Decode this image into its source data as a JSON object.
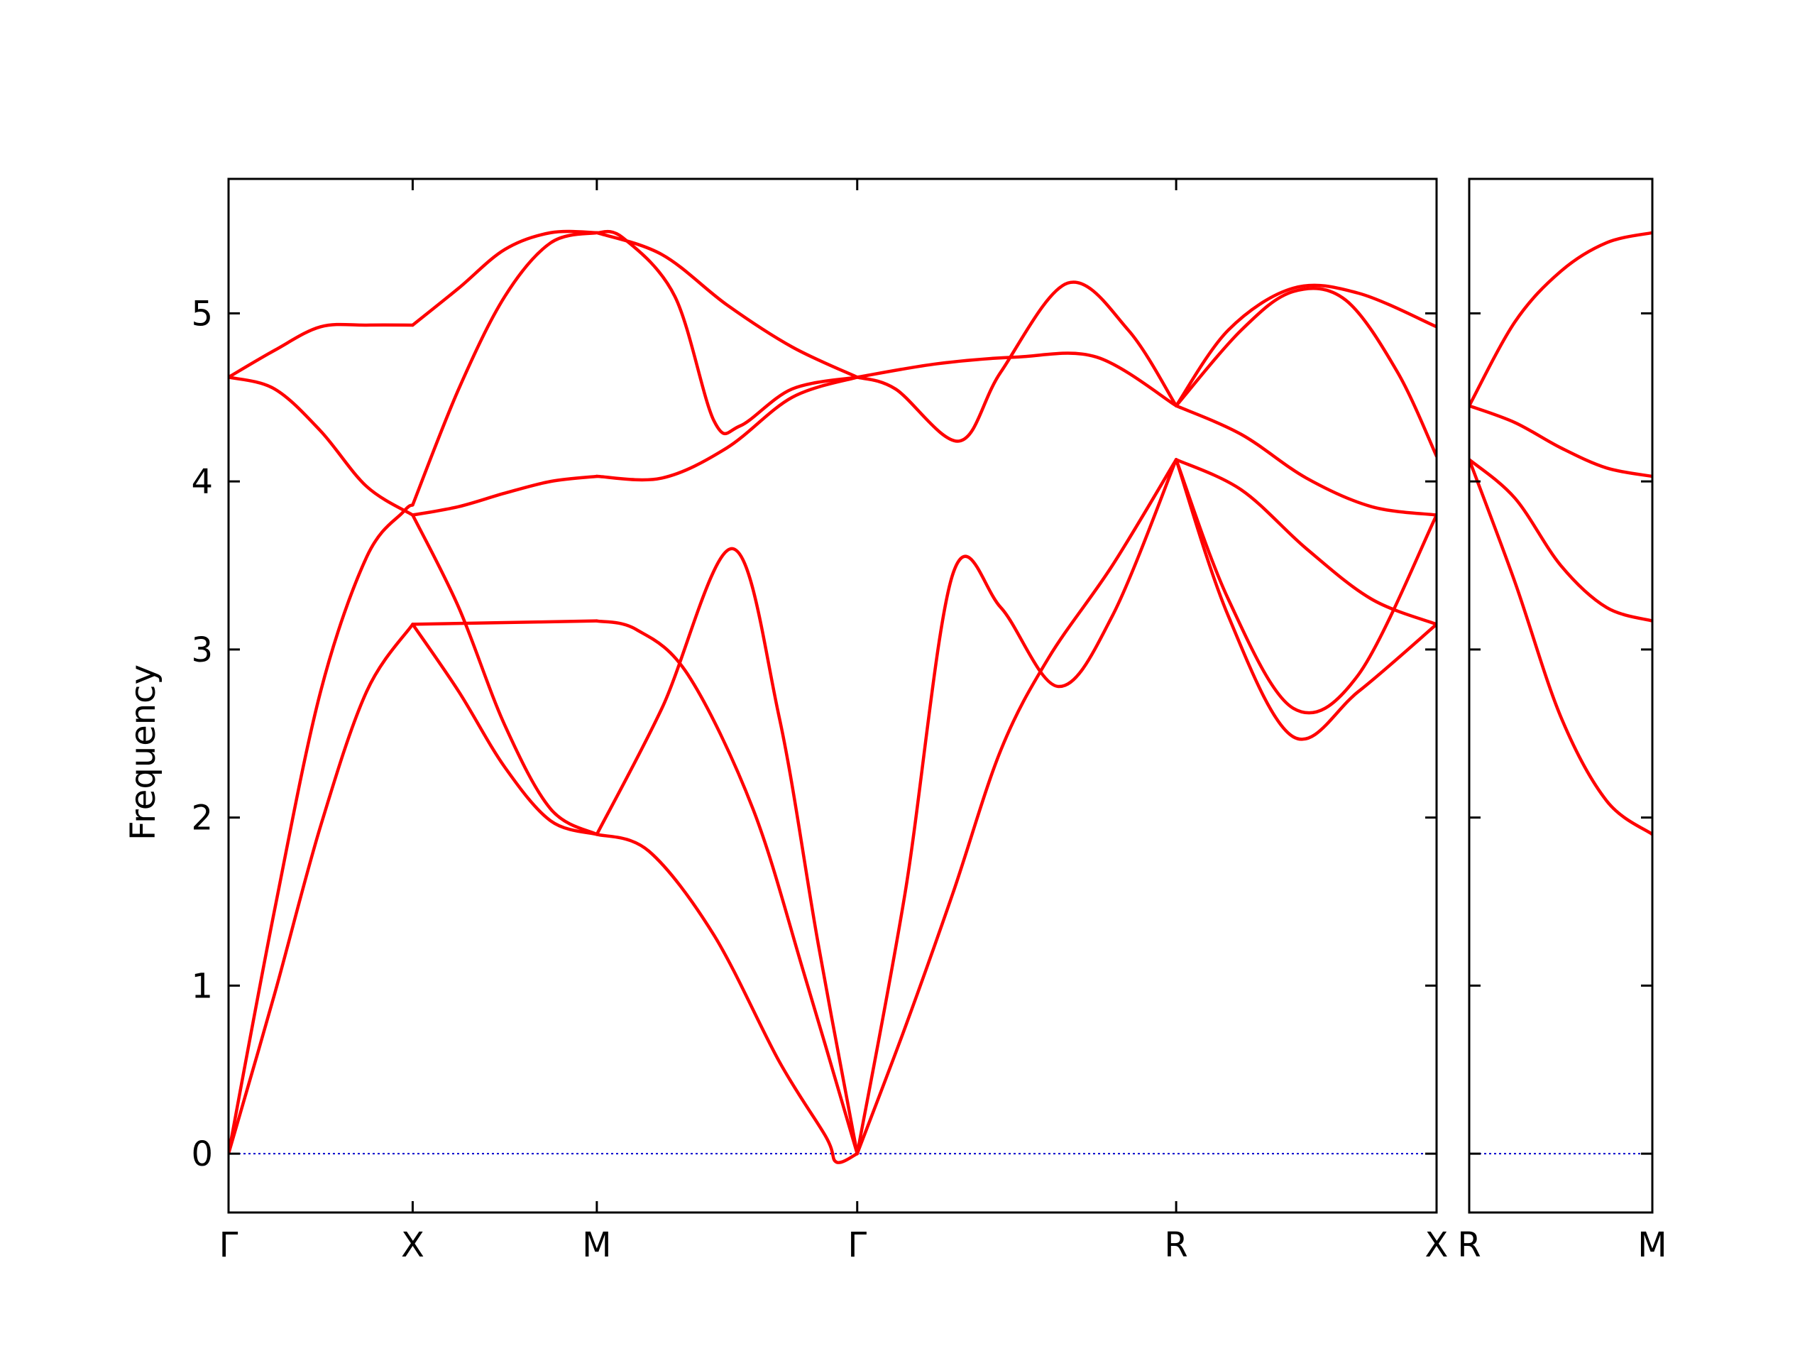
{
  "chart_data": {
    "type": "line",
    "ylabel": "Frequency",
    "ylim": [
      -0.35,
      5.8
    ],
    "yticks": [
      0,
      1,
      2,
      3,
      4,
      5
    ],
    "line_color": "#ff0000",
    "zero_line_color": "#0000cc",
    "segment_lengths": [
      1.0,
      1.0,
      1.4142,
      1.7321,
      1.4142,
      1.0
    ],
    "panels": [
      {
        "name": "main",
        "x_labels": [
          "Γ",
          "X",
          "M",
          "Γ",
          "R",
          "X"
        ],
        "first_segment": 0,
        "last_segment": 4
      },
      {
        "name": "right",
        "x_labels": [
          "R",
          "M"
        ],
        "first_segment": 5,
        "last_segment": 5
      }
    ],
    "series": [
      {
        "segment": 0,
        "x": [
          0,
          0.25,
          0.5,
          0.75,
          1.0
        ],
        "y": [
          4.62,
          4.78,
          4.92,
          4.93,
          4.93
        ]
      },
      {
        "segment": 0,
        "x": [
          0,
          0.25,
          0.5,
          0.75,
          1.0
        ],
        "y": [
          4.62,
          4.55,
          4.3,
          3.97,
          3.8
        ]
      },
      {
        "segment": 0,
        "x": [
          0,
          0.25,
          0.5,
          0.75,
          0.95,
          1.0
        ],
        "y": [
          0.0,
          1.45,
          2.75,
          3.55,
          3.82,
          3.86
        ]
      },
      {
        "segment": 0,
        "x": [
          0,
          0.25,
          0.5,
          0.75,
          1.0
        ],
        "y": [
          0.0,
          0.95,
          1.95,
          2.75,
          3.15
        ]
      },
      {
        "segment": 1,
        "x": [
          0,
          0.25,
          0.5,
          0.75,
          1.0
        ],
        "y": [
          4.93,
          5.15,
          5.38,
          5.48,
          5.48
        ]
      },
      {
        "segment": 1,
        "x": [
          0,
          0.25,
          0.5,
          0.75,
          1.0
        ],
        "y": [
          3.86,
          4.55,
          5.1,
          5.42,
          5.48
        ]
      },
      {
        "segment": 1,
        "x": [
          0,
          0.25,
          0.5,
          0.75,
          1.0
        ],
        "y": [
          3.8,
          3.85,
          3.93,
          4.0,
          4.03
        ]
      },
      {
        "segment": 1,
        "x": [
          0,
          0.25,
          0.5,
          0.75,
          1.0
        ],
        "y": [
          3.8,
          3.25,
          2.55,
          2.05,
          1.9
        ]
      },
      {
        "segment": 1,
        "x": [
          0,
          0.25,
          0.5,
          0.75,
          1.0
        ],
        "y": [
          3.15,
          2.75,
          2.3,
          1.98,
          1.9
        ]
      },
      {
        "segment": 1,
        "x": [
          0,
          0.5,
          1.0
        ],
        "y": [
          3.15,
          3.16,
          3.17
        ]
      },
      {
        "segment": 2,
        "x": [
          0,
          0.1,
          0.3,
          0.45,
          0.55,
          0.75,
          1.0
        ],
        "y": [
          5.48,
          5.45,
          5.1,
          4.36,
          4.33,
          4.55,
          4.62
        ]
      },
      {
        "segment": 2,
        "x": [
          0,
          0.25,
          0.5,
          0.75,
          1.0
        ],
        "y": [
          5.48,
          5.35,
          5.05,
          4.8,
          4.62
        ]
      },
      {
        "segment": 2,
        "x": [
          0,
          0.25,
          0.5,
          0.75,
          1.0
        ],
        "y": [
          4.03,
          4.02,
          4.2,
          4.5,
          4.62
        ]
      },
      {
        "segment": 2,
        "x": [
          0,
          0.25,
          0.52,
          0.7,
          0.85,
          1.0
        ],
        "y": [
          1.9,
          2.65,
          3.6,
          2.6,
          1.25,
          0.0
        ]
      },
      {
        "segment": 2,
        "x": [
          0,
          0.15,
          0.35,
          0.6,
          0.8,
          1.0
        ],
        "y": [
          3.17,
          3.12,
          2.85,
          2.05,
          1.05,
          0.0
        ]
      },
      {
        "segment": 2,
        "x": [
          0,
          0.2,
          0.45,
          0.7,
          0.88,
          0.92,
          1.0
        ],
        "y": [
          1.9,
          1.8,
          1.3,
          0.55,
          0.1,
          -0.05,
          0.0
        ]
      },
      {
        "segment": 3,
        "x": [
          0,
          0.25,
          0.5,
          0.75,
          1.0
        ],
        "y": [
          4.62,
          4.7,
          4.74,
          4.74,
          4.45
        ]
      },
      {
        "segment": 3,
        "x": [
          0,
          0.12,
          0.32,
          0.45,
          0.66,
          0.85,
          1.0
        ],
        "y": [
          4.62,
          4.55,
          4.24,
          4.65,
          5.18,
          4.9,
          4.45
        ]
      },
      {
        "segment": 3,
        "x": [
          0,
          0.15,
          0.3,
          0.45,
          0.63,
          0.8,
          1.0
        ],
        "y": [
          0.0,
          1.55,
          3.45,
          3.25,
          2.78,
          3.2,
          4.13
        ]
      },
      {
        "segment": 3,
        "x": [
          0,
          0.15,
          0.3,
          0.45,
          0.6,
          0.8,
          1.0
        ],
        "y": [
          0.0,
          0.75,
          1.55,
          2.4,
          2.95,
          3.5,
          4.13
        ]
      },
      {
        "segment": 4,
        "x": [
          0,
          0.25,
          0.45,
          0.65,
          0.85,
          1.0
        ],
        "y": [
          4.45,
          4.9,
          5.13,
          5.08,
          4.65,
          4.15
        ]
      },
      {
        "segment": 4,
        "x": [
          0,
          0.2,
          0.45,
          0.7,
          1.0
        ],
        "y": [
          4.45,
          4.9,
          5.15,
          5.12,
          4.92
        ]
      },
      {
        "segment": 4,
        "x": [
          0,
          0.25,
          0.5,
          0.75,
          1.0
        ],
        "y": [
          4.45,
          4.28,
          4.02,
          3.85,
          3.8
        ]
      },
      {
        "segment": 4,
        "x": [
          0,
          0.25,
          0.5,
          0.75,
          1.0
        ],
        "y": [
          4.13,
          3.95,
          3.6,
          3.3,
          3.15
        ]
      },
      {
        "segment": 4,
        "x": [
          0,
          0.2,
          0.45,
          0.7,
          1.0
        ],
        "y": [
          4.13,
          3.3,
          2.65,
          2.85,
          3.8
        ]
      },
      {
        "segment": 4,
        "x": [
          0,
          0.2,
          0.45,
          0.7,
          1.0
        ],
        "y": [
          4.13,
          3.2,
          2.48,
          2.75,
          3.15
        ]
      },
      {
        "segment": 5,
        "x": [
          0,
          0.25,
          0.5,
          0.75,
          1.0
        ],
        "y": [
          4.45,
          4.95,
          5.25,
          5.42,
          5.48
        ]
      },
      {
        "segment": 5,
        "x": [
          0,
          0.25,
          0.5,
          0.75,
          1.0
        ],
        "y": [
          4.45,
          4.35,
          4.2,
          4.08,
          4.03
        ]
      },
      {
        "segment": 5,
        "x": [
          0,
          0.25,
          0.5,
          0.75,
          1.0
        ],
        "y": [
          4.13,
          3.9,
          3.5,
          3.25,
          3.17
        ]
      },
      {
        "segment": 5,
        "x": [
          0,
          0.25,
          0.5,
          0.75,
          1.0
        ],
        "y": [
          4.13,
          3.4,
          2.6,
          2.1,
          1.9
        ]
      }
    ]
  }
}
